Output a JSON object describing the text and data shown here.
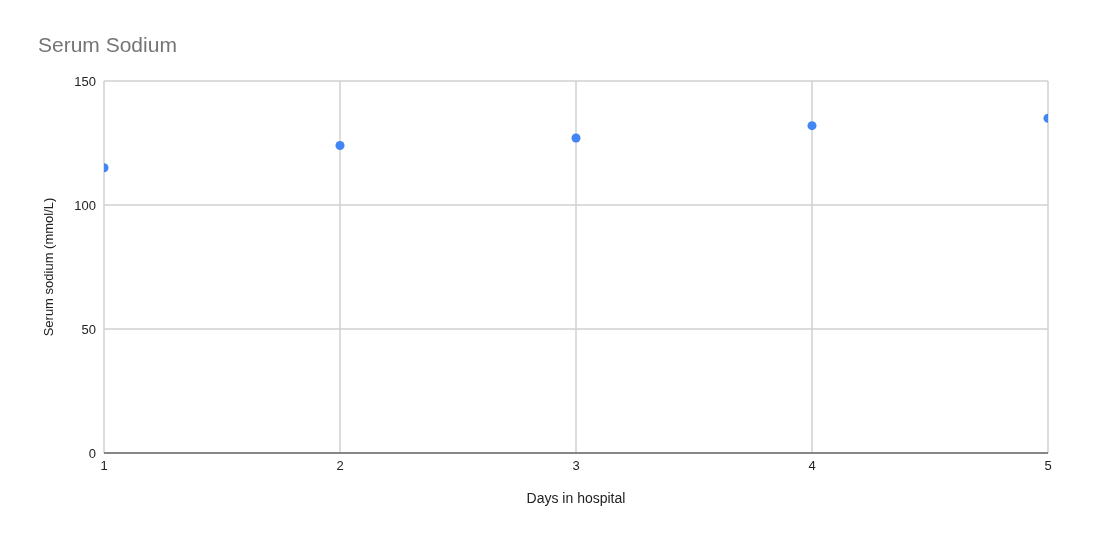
{
  "chart_data": {
    "type": "scatter",
    "title": "Serum Sodium",
    "xlabel": "Days in hospital",
    "ylabel": "Serum sodium (mmol/L)",
    "x": [
      1,
      2,
      3,
      4,
      5
    ],
    "series": [
      {
        "color": "#4285f4",
        "values": [
          115,
          124,
          127,
          132,
          135
        ]
      }
    ],
    "xlim": [
      1,
      5
    ],
    "xticks": [
      1,
      2,
      3,
      4,
      5
    ],
    "ylim": [
      0,
      150
    ],
    "yticks": [
      0,
      50,
      100,
      150
    ],
    "grid": true,
    "marker": "circle"
  }
}
